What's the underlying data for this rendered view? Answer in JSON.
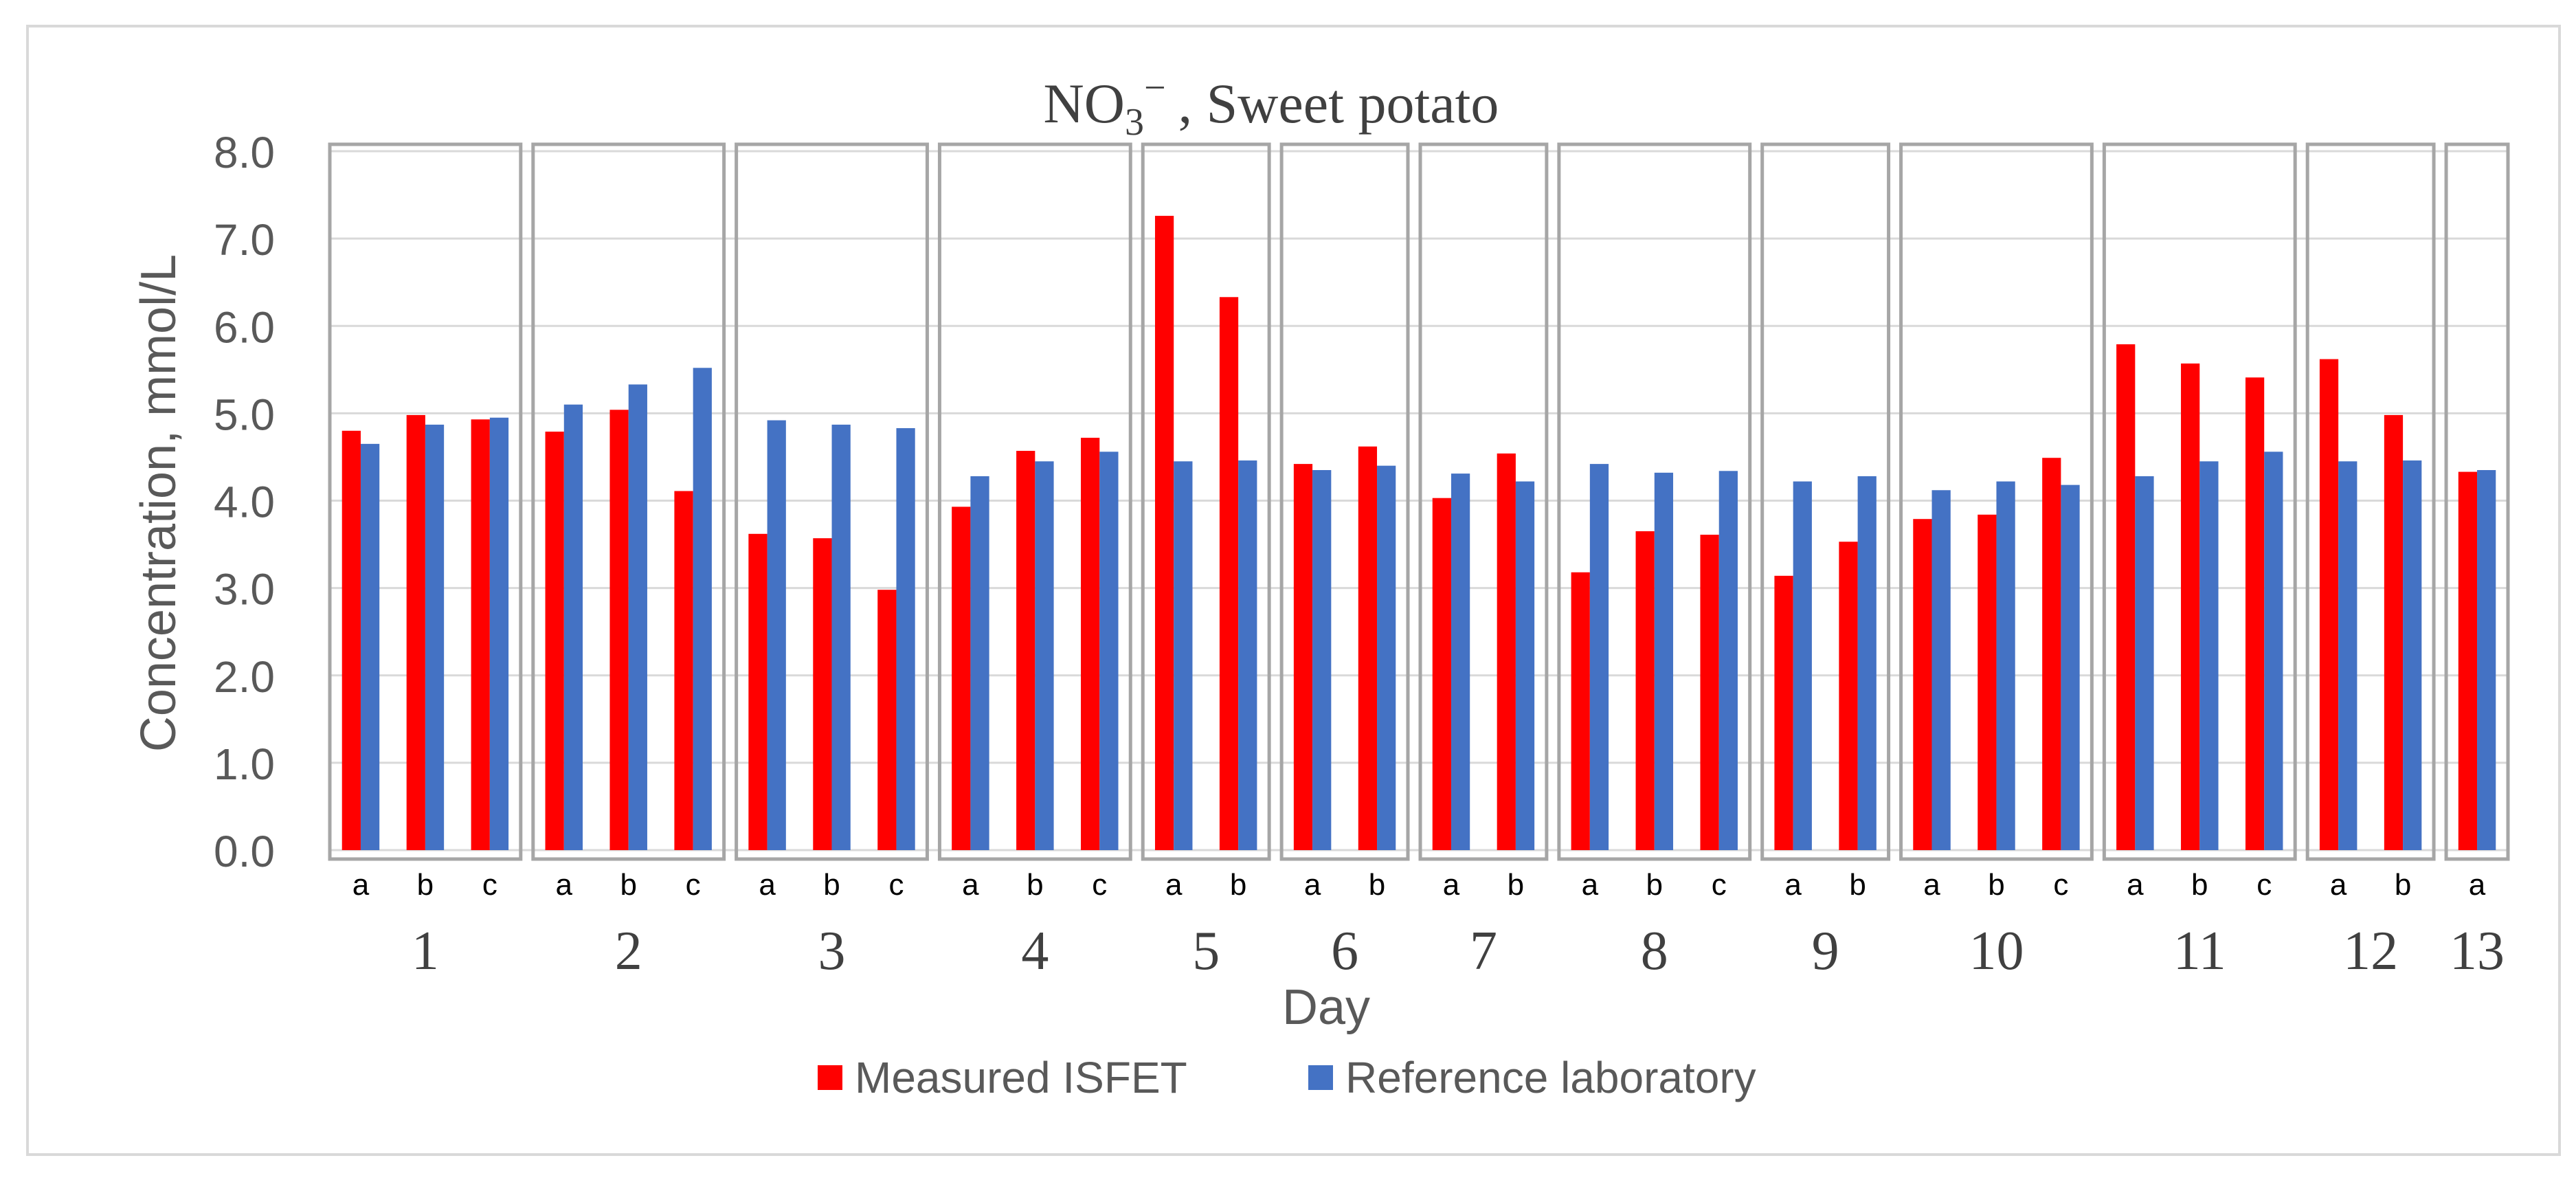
{
  "chart_data": {
    "type": "bar",
    "title": {
      "formula": "NO",
      "subscript": "3",
      "superscript": "−",
      "rest": ", Sweet potato"
    },
    "xlabel": "Day",
    "ylabel": "Concentration, mmol/L",
    "ylim": [
      0,
      8
    ],
    "yticks": [
      "0.0",
      "1.0",
      "2.0",
      "3.0",
      "4.0",
      "5.0",
      "6.0",
      "7.0",
      "8.0"
    ],
    "grid": true,
    "legend_position": "bottom-center",
    "series": [
      {
        "name": "Measured ISFET",
        "color": "#ff0000"
      },
      {
        "name": "Reference laboratory",
        "color": "#4472c4"
      }
    ],
    "groups": [
      {
        "day": "1",
        "samples": [
          {
            "label": "a",
            "isfet": 4.8,
            "ref": 4.65
          },
          {
            "label": "b",
            "isfet": 4.98,
            "ref": 4.87
          },
          {
            "label": "c",
            "isfet": 4.93,
            "ref": 4.95
          }
        ]
      },
      {
        "day": "2",
        "samples": [
          {
            "label": "a",
            "isfet": 4.79,
            "ref": 5.1
          },
          {
            "label": "b",
            "isfet": 5.04,
            "ref": 5.33
          },
          {
            "label": "c",
            "isfet": 4.11,
            "ref": 5.52
          }
        ]
      },
      {
        "day": "3",
        "samples": [
          {
            "label": "a",
            "isfet": 3.62,
            "ref": 4.92
          },
          {
            "label": "b",
            "isfet": 3.57,
            "ref": 4.87
          },
          {
            "label": "c",
            "isfet": 2.98,
            "ref": 4.83
          }
        ]
      },
      {
        "day": "4",
        "samples": [
          {
            "label": "a",
            "isfet": 3.93,
            "ref": 4.28
          },
          {
            "label": "b",
            "isfet": 4.57,
            "ref": 4.45
          },
          {
            "label": "c",
            "isfet": 4.72,
            "ref": 4.56
          }
        ]
      },
      {
        "day": "5",
        "samples": [
          {
            "label": "a",
            "isfet": 7.26,
            "ref": 4.45
          },
          {
            "label": "b",
            "isfet": 6.33,
            "ref": 4.46
          }
        ]
      },
      {
        "day": "6",
        "samples": [
          {
            "label": "a",
            "isfet": 4.42,
            "ref": 4.35
          },
          {
            "label": "b",
            "isfet": 4.62,
            "ref": 4.4
          }
        ]
      },
      {
        "day": "7",
        "samples": [
          {
            "label": "a",
            "isfet": 4.03,
            "ref": 4.31
          },
          {
            "label": "b",
            "isfet": 4.54,
            "ref": 4.22
          }
        ]
      },
      {
        "day": "8",
        "samples": [
          {
            "label": "a",
            "isfet": 3.18,
            "ref": 4.42
          },
          {
            "label": "b",
            "isfet": 3.65,
            "ref": 4.32
          },
          {
            "label": "c",
            "isfet": 3.61,
            "ref": 4.34
          }
        ]
      },
      {
        "day": "9",
        "samples": [
          {
            "label": "a",
            "isfet": 3.14,
            "ref": 4.22
          },
          {
            "label": "b",
            "isfet": 3.53,
            "ref": 4.28
          }
        ]
      },
      {
        "day": "10",
        "samples": [
          {
            "label": "a",
            "isfet": 3.79,
            "ref": 4.12
          },
          {
            "label": "b",
            "isfet": 3.84,
            "ref": 4.22
          },
          {
            "label": "c",
            "isfet": 4.49,
            "ref": 4.18
          }
        ]
      },
      {
        "day": "11",
        "samples": [
          {
            "label": "a",
            "isfet": 5.79,
            "ref": 4.28
          },
          {
            "label": "b",
            "isfet": 5.57,
            "ref": 4.45
          },
          {
            "label": "c",
            "isfet": 5.41,
            "ref": 4.56
          }
        ]
      },
      {
        "day": "12",
        "samples": [
          {
            "label": "a",
            "isfet": 5.62,
            "ref": 4.45
          },
          {
            "label": "b",
            "isfet": 4.98,
            "ref": 4.46
          }
        ]
      },
      {
        "day": "13",
        "samples": [
          {
            "label": "a",
            "isfet": 4.33,
            "ref": 4.35
          }
        ]
      }
    ]
  }
}
